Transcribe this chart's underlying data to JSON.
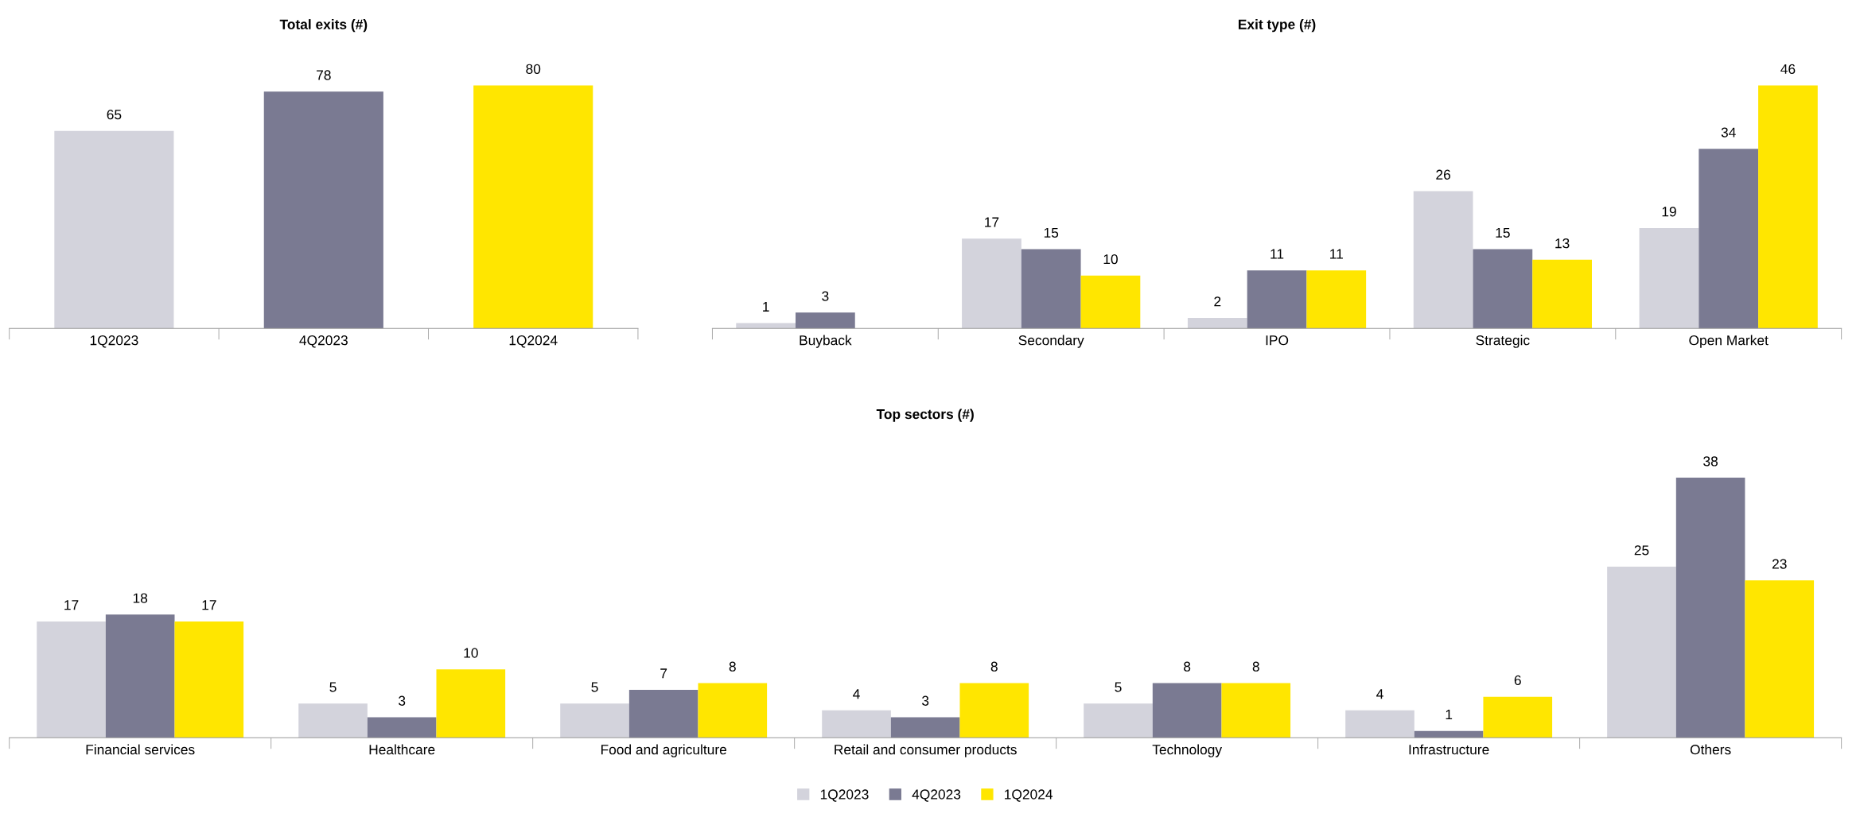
{
  "chart_data": [
    {
      "type": "bar",
      "title": "Total exits (#)",
      "categories": [
        "1Q2023",
        "4Q2023",
        "1Q2024"
      ],
      "values": [
        65,
        78,
        80
      ],
      "colors": [
        "#d3d3dc",
        "#7a7a92",
        "#ffe600"
      ],
      "data_labels": true,
      "tick_labels": "x",
      "grid": false
    },
    {
      "type": "bar",
      "title": "Exit type (#)",
      "categories": [
        "Buyback",
        "Secondary",
        "IPO",
        "Strategic",
        "Open Market"
      ],
      "series": [
        {
          "color": "#d3d3dc",
          "values": [
            1,
            17,
            2,
            26,
            19
          ]
        },
        {
          "color": "#7a7a92",
          "values": [
            3,
            15,
            11,
            15,
            34
          ]
        },
        {
          "color": "#ffe600",
          "values": [
            null,
            10,
            11,
            13,
            46
          ]
        }
      ],
      "data_labels": true,
      "tick_labels": "x",
      "grid": false
    },
    {
      "type": "bar",
      "title": "Top sectors (#)",
      "categories": [
        "Financial services",
        "Healthcare",
        "Food and agriculture",
        "Retail and consumer products",
        "Technology",
        "Infrastructure",
        "Others"
      ],
      "series": [
        {
          "name": "1Q2023",
          "color": "#d3d3dc",
          "values": [
            17,
            5,
            5,
            4,
            5,
            4,
            25
          ]
        },
        {
          "name": "4Q2023",
          "color": "#7a7a92",
          "values": [
            18,
            3,
            7,
            3,
            8,
            1,
            38
          ]
        },
        {
          "name": "1Q2024",
          "color": "#ffe600",
          "values": [
            17,
            10,
            8,
            8,
            8,
            6,
            23
          ]
        }
      ],
      "data_labels": true,
      "tick_labels": "x",
      "grid": false,
      "legend": "bottom"
    }
  ]
}
